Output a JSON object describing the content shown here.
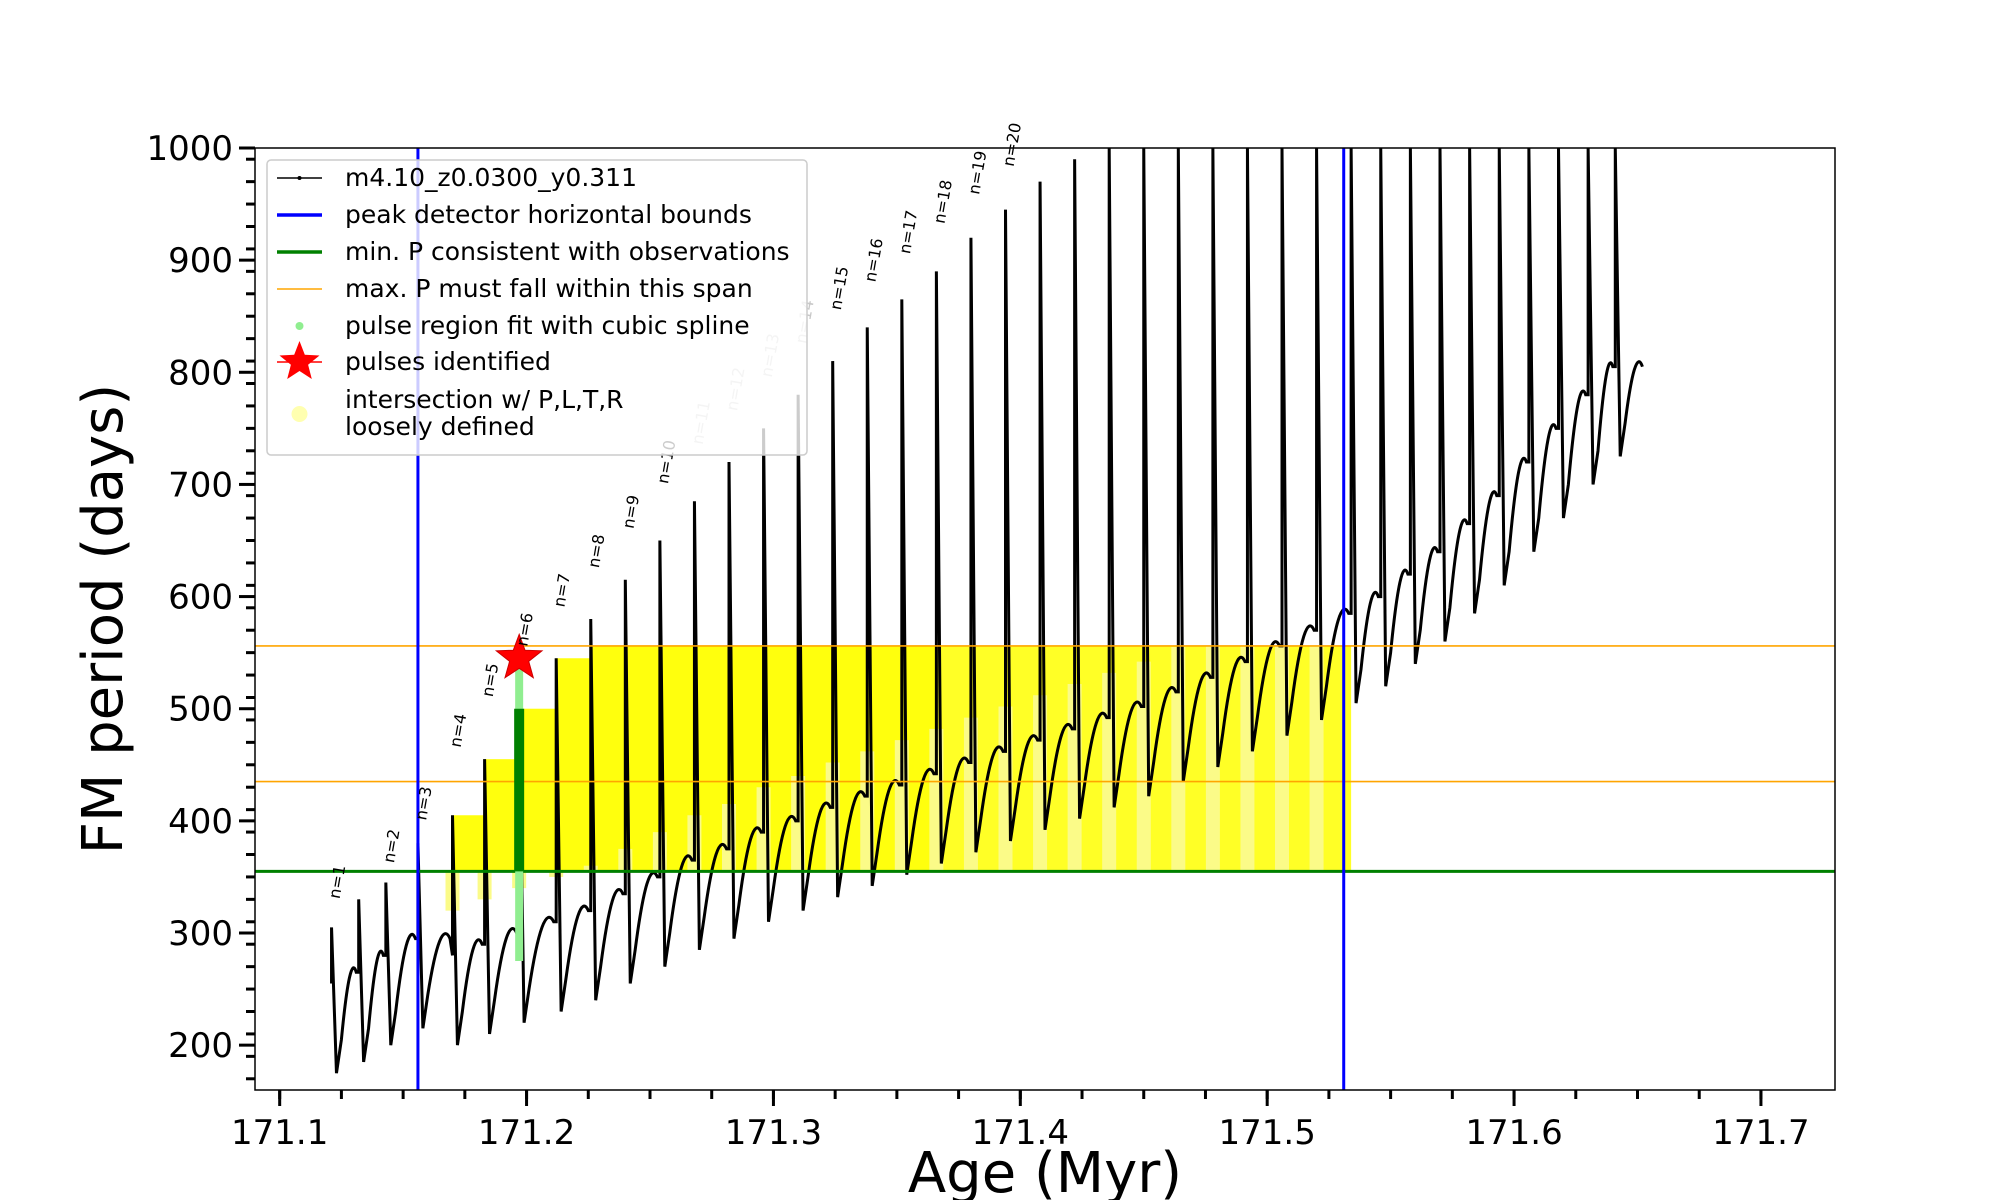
{
  "chart_data": {
    "type": "line",
    "xlabel": "Age (Myr)",
    "ylabel": "FM period (days)",
    "xlim": [
      171.09,
      171.73
    ],
    "ylim": [
      160,
      1000
    ],
    "xticks": [
      171.1,
      171.2,
      171.3,
      171.4,
      171.5,
      171.6,
      171.7
    ],
    "xtick_labels": [
      "171.1",
      "171.2",
      "171.3",
      "171.4",
      "171.5",
      "171.6",
      "171.7"
    ],
    "yticks": [
      200,
      300,
      400,
      500,
      600,
      700,
      800,
      900,
      1000
    ],
    "ytick_labels": [
      "200",
      "300",
      "400",
      "500",
      "600",
      "700",
      "800",
      "900",
      "1000"
    ],
    "legend_position": "upper-left",
    "legend": [
      {
        "key": "track",
        "label": "m4.10_z0.0300_y0.311",
        "color": "#000000"
      },
      {
        "key": "bounds",
        "label": "peak detector horizontal bounds",
        "color": "#0000ff"
      },
      {
        "key": "minp",
        "label": "min. P consistent with observations",
        "color": "#008000"
      },
      {
        "key": "maxp",
        "label": "max. P must fall within this span",
        "color": "#ffa500"
      },
      {
        "key": "spline",
        "label": "pulse region fit with cubic spline",
        "color": "#90ee90"
      },
      {
        "key": "pulses",
        "label": "pulses identified",
        "color": "#ff0000"
      },
      {
        "key": "intersect",
        "label": "intersection w/ P,L,T,R\nloosely defined",
        "color": "#ffff00"
      }
    ],
    "vertical_lines": [
      171.156,
      171.531
    ],
    "min_period": 355,
    "max_period_span": [
      435,
      556
    ],
    "track_name": "m4.10_z0.0300_y0.311",
    "pulse_ages": [
      171.121,
      171.132,
      171.143,
      171.156,
      171.17,
      171.183,
      171.197,
      171.212,
      171.226,
      171.24,
      171.254,
      171.268,
      171.282,
      171.296,
      171.31,
      171.324,
      171.338,
      171.352,
      171.366,
      171.38,
      171.394,
      171.408,
      171.422,
      171.436,
      171.45,
      171.464,
      171.478,
      171.492,
      171.506,
      171.52,
      171.534,
      171.546,
      171.558,
      171.57,
      171.582,
      171.594,
      171.606,
      171.618,
      171.63,
      171.641
    ],
    "pulse_min_period": [
      175,
      185,
      200,
      215,
      200,
      210,
      220,
      230,
      240,
      255,
      270,
      285,
      295,
      310,
      320,
      332,
      342,
      352,
      362,
      372,
      382,
      392,
      402,
      412,
      422,
      435,
      448,
      462,
      476,
      490,
      505,
      520,
      540,
      560,
      585,
      610,
      640,
      670,
      700,
      725
    ],
    "pulse_peak_period": [
      305,
      330,
      345,
      380,
      405,
      455,
      500,
      545,
      580,
      615,
      650,
      685,
      720,
      750,
      780,
      810,
      840,
      865,
      890,
      920,
      945,
      970,
      990,
      1000,
      1000,
      1000,
      1000,
      1000,
      1000,
      1000,
      1000,
      1000,
      1000,
      1000,
      1000,
      1000,
      1000,
      1000,
      1000,
      1000
    ],
    "pulse_labels": [
      {
        "text": "n=1",
        "age": 171.121,
        "period": 330,
        "faded": false
      },
      {
        "text": "n=2",
        "age": 171.143,
        "period": 362,
        "faded": false
      },
      {
        "text": "n=3",
        "age": 171.156,
        "period": 400,
        "faded": false
      },
      {
        "text": "n=4",
        "age": 171.17,
        "period": 465,
        "faded": false
      },
      {
        "text": "n=5",
        "age": 171.183,
        "period": 510,
        "faded": false
      },
      {
        "text": "n=6",
        "age": 171.197,
        "period": 555,
        "faded": false
      },
      {
        "text": "n=7",
        "age": 171.212,
        "period": 590,
        "faded": false
      },
      {
        "text": "n=8",
        "age": 171.226,
        "period": 625,
        "faded": false
      },
      {
        "text": "n=9",
        "age": 171.24,
        "period": 660,
        "faded": false
      },
      {
        "text": "n=10",
        "age": 171.254,
        "period": 700,
        "faded": false
      },
      {
        "text": "n=11",
        "age": 171.268,
        "period": 735,
        "faded": true
      },
      {
        "text": "n=12",
        "age": 171.282,
        "period": 765,
        "faded": true
      },
      {
        "text": "n=13",
        "age": 171.296,
        "period": 795,
        "faded": true
      },
      {
        "text": "n=14",
        "age": 171.31,
        "period": 825,
        "faded": true
      },
      {
        "text": "n=15",
        "age": 171.324,
        "period": 855,
        "faded": false
      },
      {
        "text": "n=16",
        "age": 171.338,
        "period": 880,
        "faded": false
      },
      {
        "text": "n=17",
        "age": 171.352,
        "period": 905,
        "faded": false
      },
      {
        "text": "n=18",
        "age": 171.366,
        "period": 932,
        "faded": false
      },
      {
        "text": "n=19",
        "age": 171.38,
        "period": 958,
        "faded": false
      },
      {
        "text": "n=20",
        "age": 171.394,
        "period": 983,
        "faded": false
      }
    ],
    "spline_region": {
      "age": 171.197,
      "period_range": [
        275,
        545
      ]
    },
    "identified_pulse": {
      "age": 171.197,
      "period": 545
    }
  }
}
